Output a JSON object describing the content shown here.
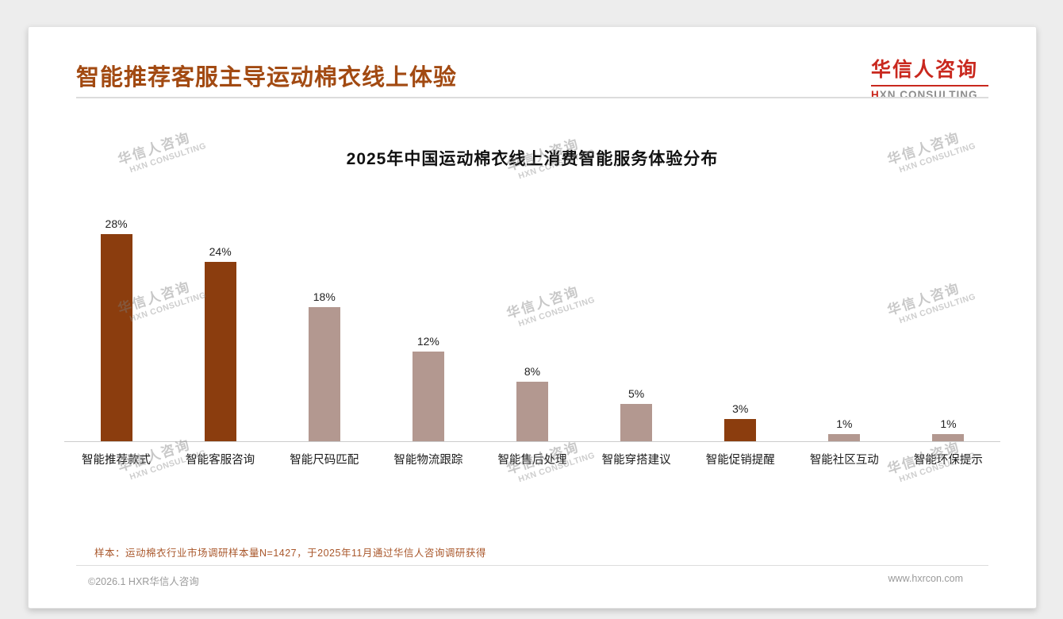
{
  "page": {
    "title": "智能推荐客服主导运动棉衣线上体验",
    "logo": {
      "cn": "华信人咨询",
      "en": "HXN CONSULTING"
    },
    "watermark": {
      "cn": "华信人咨询",
      "en": "HXN CONSULTING"
    },
    "note": "样本：运动棉衣行业市场调研样本量N=1427，于2025年11月通过华信人咨询调研获得",
    "footer": {
      "left": "©2026.1 HXR华信人咨询",
      "right": "www.hxrcon.com"
    }
  },
  "colors": {
    "title_brown": "#A24A12",
    "logo_red": "#C9281E",
    "bar_dark": "#8B3D0E",
    "bar_light": "#B39890",
    "note_brown": "#A9572B"
  },
  "chart_data": {
    "type": "bar",
    "title": "2025年中国运动棉衣线上消费智能服务体验分布",
    "categories": [
      "智能推荐款式",
      "智能客服咨询",
      "智能尺码匹配",
      "智能物流跟踪",
      "智能售后处理",
      "智能穿搭建议",
      "智能促销提醒",
      "智能社区互动",
      "智能环保提示"
    ],
    "values": [
      28,
      24,
      18,
      12,
      8,
      5,
      3,
      1,
      1
    ],
    "value_labels": [
      "28%",
      "24%",
      "18%",
      "12%",
      "8%",
      "5%",
      "3%",
      "1%",
      "1%"
    ],
    "bar_colors": [
      "#8B3D0E",
      "#8B3D0E",
      "#B39890",
      "#B39890",
      "#B39890",
      "#B39890",
      "#8B3D0E",
      "#B39890",
      "#B39890"
    ],
    "ylim": [
      0,
      30
    ],
    "xlabel": "",
    "ylabel": "",
    "grid": false,
    "legend": false
  }
}
